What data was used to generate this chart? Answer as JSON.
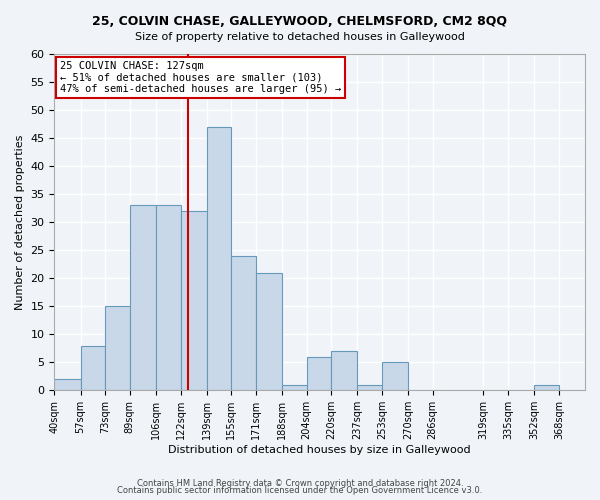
{
  "title1": "25, COLVIN CHASE, GALLEYWOOD, CHELMSFORD, CM2 8QQ",
  "title2": "Size of property relative to detached houses in Galleywood",
  "xlabel": "Distribution of detached houses by size in Galleywood",
  "ylabel": "Number of detached properties",
  "bin_labels": [
    "40sqm",
    "57sqm",
    "73sqm",
    "89sqm",
    "106sqm",
    "122sqm",
    "139sqm",
    "155sqm",
    "171sqm",
    "188sqm",
    "204sqm",
    "220sqm",
    "237sqm",
    "253sqm",
    "270sqm",
    "286sqm",
    "319sqm",
    "335sqm",
    "352sqm",
    "368sqm"
  ],
  "bin_edges": [
    40,
    57,
    73,
    89,
    106,
    122,
    139,
    155,
    171,
    188,
    204,
    220,
    237,
    253,
    270,
    286,
    319,
    335,
    352,
    368,
    385
  ],
  "bar_heights": [
    2,
    8,
    15,
    33,
    33,
    32,
    47,
    24,
    21,
    1,
    6,
    7,
    1,
    5,
    0,
    0,
    0,
    0,
    1,
    0
  ],
  "bar_color": "#c8d8e8",
  "bar_edge_color": "#6699bb",
  "vline_x": 127,
  "vline_color": "#cc0000",
  "annotation_text": "25 COLVIN CHASE: 127sqm\n← 51% of detached houses are smaller (103)\n47% of semi-detached houses are larger (95) →",
  "annotation_box_color": "#ffffff",
  "annotation_box_edge": "#cc0000",
  "ylim": [
    0,
    60
  ],
  "background_color": "#f0f4f8",
  "grid_color": "#ffffff",
  "footer1": "Contains HM Land Registry data © Crown copyright and database right 2024.",
  "footer2": "Contains public sector information licensed under the Open Government Licence v3.0."
}
